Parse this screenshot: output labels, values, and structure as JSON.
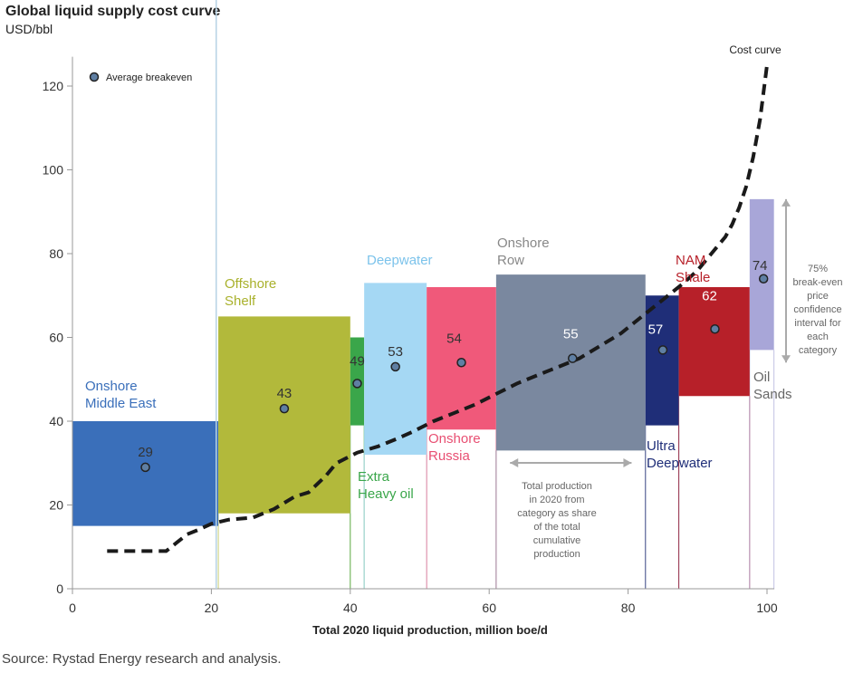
{
  "chart_data": {
    "type": "bar",
    "title": "Global liquid supply cost curve",
    "subtitle": "USD/bbl",
    "xlabel": "Total 2020 liquid production, million boe/d",
    "ylabel": "USD/bbl",
    "xlim": [
      0,
      100
    ],
    "ylim": [
      0,
      125
    ],
    "xticks": [
      "0",
      "20",
      "40",
      "60",
      "80",
      "100"
    ],
    "yticks": [
      "0",
      "20",
      "40",
      "60",
      "80",
      "100",
      "120"
    ],
    "xtick_values": [
      0,
      20,
      40,
      60,
      80,
      100
    ],
    "ytick_values": [
      0,
      20,
      40,
      60,
      80,
      100,
      120
    ],
    "legend": {
      "label": "Average breakeven",
      "position": "top-left"
    },
    "categories": [
      {
        "name": "Onshore Middle East",
        "lines": [
          "Onshore",
          "Middle East"
        ],
        "x0": 0,
        "x1": 21,
        "low": 15,
        "high": 40,
        "avg": 29,
        "avg_x": 10.5,
        "color": "#3A6FBA",
        "label_color": "#3A6FBA"
      },
      {
        "name": "Offshore Shelf",
        "lines": [
          "Offshore",
          "Shelf"
        ],
        "x0": 21,
        "x1": 40,
        "low": 18,
        "high": 65,
        "avg": 43,
        "avg_x": 30.5,
        "color": "#B2B93B",
        "label_color": "#A9B12C"
      },
      {
        "name": "Extra Heavy oil",
        "lines": [
          "Extra",
          "Heavy oil"
        ],
        "x0": 40,
        "x1": 42,
        "low": 39,
        "high": 60,
        "avg": 49,
        "avg_x": 41,
        "color": "#3AA64A",
        "label_color": "#3AA64A"
      },
      {
        "name": "Deepwater",
        "lines": [
          "Deepwater"
        ],
        "x0": 42,
        "x1": 51,
        "low": 32,
        "high": 73,
        "avg": 53,
        "avg_x": 46.5,
        "color": "#A5D8F4",
        "label_color": "#7CC3EB"
      },
      {
        "name": "Onshore Russia",
        "lines": [
          "Onshore",
          "Russia"
        ],
        "x0": 51,
        "x1": 61,
        "low": 38,
        "high": 72,
        "avg": 54,
        "avg_x": 56,
        "color": "#F0597A",
        "label_color": "#E84F72"
      },
      {
        "name": "Onshore Row",
        "lines": [
          "Onshore",
          "Row"
        ],
        "x0": 61,
        "x1": 82.5,
        "low": 33,
        "high": 75,
        "avg": 55,
        "avg_x": 72,
        "color": "#7A889F",
        "label_color": "#888888"
      },
      {
        "name": "Ultra Deepwater",
        "lines": [
          "Ultra",
          "Deepwater"
        ],
        "x0": 82.5,
        "x1": 87.3,
        "low": 39,
        "high": 70,
        "avg": 57,
        "avg_x": 85,
        "color": "#1F2E78",
        "label_color": "#1F2E78"
      },
      {
        "name": "NAM Shale",
        "lines": [
          "NAM",
          "Shale"
        ],
        "x0": 87.3,
        "x1": 97.5,
        "low": 46,
        "high": 72,
        "avg": 62,
        "avg_x": 92.5,
        "color": "#B72029",
        "label_color": "#B72029"
      },
      {
        "name": "Oil Sands",
        "lines": [
          "Oil",
          "Sands"
        ],
        "x0": 97.5,
        "x1": 101,
        "low": 57,
        "high": 93,
        "avg": 74,
        "avg_x": 99.5,
        "color": "#A8A6D8",
        "label_color": "#666666"
      }
    ],
    "cost_curve": {
      "name": "Cost curve",
      "x": [
        5,
        13.5,
        15,
        16.5,
        18,
        20,
        22.5,
        26,
        29,
        32,
        34,
        36.5,
        38,
        41,
        44,
        47,
        49,
        52,
        55,
        58,
        61,
        64,
        67,
        70,
        73,
        76,
        79,
        82,
        85,
        88,
        90,
        92,
        94,
        95,
        96,
        97,
        98,
        99,
        100
      ],
      "y": [
        9,
        9,
        11,
        13,
        14,
        15.5,
        16.5,
        17,
        19,
        22,
        23,
        27,
        30,
        32.5,
        34,
        36,
        37.5,
        40,
        42,
        44,
        46.5,
        49,
        51,
        53,
        55,
        58,
        61,
        65,
        69,
        73,
        76,
        80,
        84,
        87,
        91,
        96,
        103,
        112,
        125
      ]
    },
    "annotations": {
      "cost_curve_label": "Cost curve",
      "confidence": [
        "75%",
        "break-even",
        "price",
        "confidence",
        "interval for",
        "each",
        "category"
      ],
      "total_production": [
        "Total production",
        "in 2020 from",
        "category as share",
        "of the total",
        "cumulative",
        "production"
      ]
    }
  },
  "header": {
    "title": "Global liquid supply cost curve",
    "unit": "USD/bbl"
  },
  "footer": {
    "source": "Source: Rystad Energy research and analysis."
  },
  "colors": {
    "axis": "#999999",
    "curve": "#1a1a1a",
    "marker_fill": "#5F7FA3",
    "marker_stroke": "#222222",
    "arrow": "#AAAAAA",
    "divider": "#B7D3E5"
  }
}
